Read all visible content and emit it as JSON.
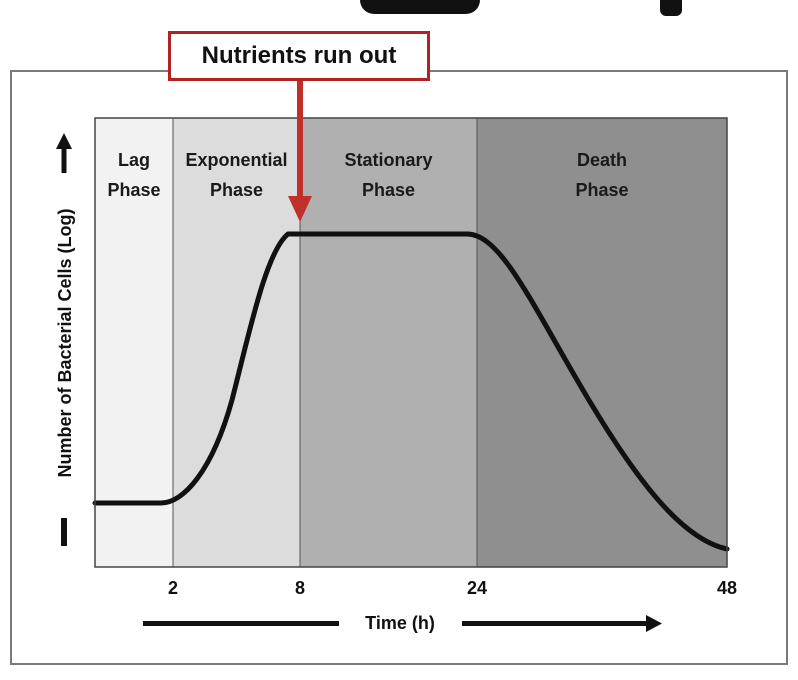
{
  "callout": {
    "label": "Nutrients run out",
    "border_color": "#b22222"
  },
  "chart_data": {
    "type": "line",
    "title": "",
    "xlabel": "Time (h)",
    "ylabel": "Number of Bacterial Cells (Log)",
    "x_ticks": [
      2,
      8,
      24,
      48
    ],
    "y_log_scale": true,
    "grid": false,
    "legend": "none",
    "curve_color": "#111111",
    "annotation": {
      "text": "Nutrients run out",
      "x": 8,
      "arrow_color": "#c0302a"
    },
    "phases": [
      {
        "name_line1": "Lag",
        "name_line2": "Phase",
        "start": 0,
        "end": 2,
        "fill": "#f2f2f2"
      },
      {
        "name_line1": "Exponential",
        "name_line2": "Phase",
        "start": 2,
        "end": 8,
        "fill": "#dcdcdc"
      },
      {
        "name_line1": "Stationary",
        "name_line2": "Phase",
        "start": 8,
        "end": 24,
        "fill": "#b0b0b0"
      },
      {
        "name_line1": "Death",
        "name_line2": "Phase",
        "start": 24,
        "end": 48,
        "fill": "#8f8f8f"
      }
    ]
  }
}
